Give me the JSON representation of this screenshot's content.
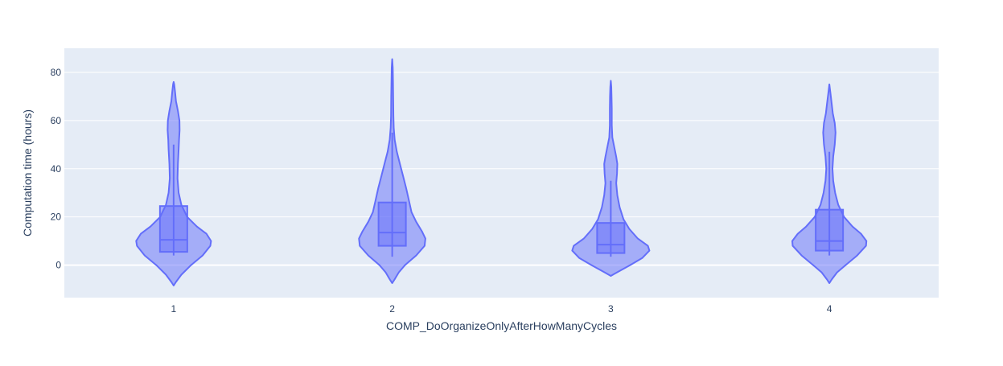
{
  "chart_data": {
    "type": "violin",
    "title": "",
    "xlabel": "COMP_DoOrganizeOnlyAfterHowManyCycles",
    "ylabel": "Computation time (hours)",
    "ylim": [
      -13.5,
      90
    ],
    "yticks": [
      0,
      20,
      40,
      60,
      80
    ],
    "grid": true,
    "categories": [
      "1",
      "2",
      "3",
      "4"
    ],
    "series": [
      {
        "category": "1",
        "box": {
          "q1": 5.5,
          "median": 10.5,
          "q3": 24.5,
          "whisker_low": 4,
          "whisker_high": 50
        },
        "range": [
          -8.5,
          76
        ],
        "density": [
          [
            -8.5,
            0
          ],
          [
            -7,
            0.06
          ],
          [
            -4,
            0.2
          ],
          [
            0,
            0.45
          ],
          [
            4,
            0.75
          ],
          [
            8,
            0.95
          ],
          [
            10,
            0.97
          ],
          [
            13,
            0.85
          ],
          [
            16,
            0.6
          ],
          [
            20,
            0.35
          ],
          [
            25,
            0.2
          ],
          [
            30,
            0.13
          ],
          [
            36,
            0.1
          ],
          [
            42,
            0.11
          ],
          [
            48,
            0.13
          ],
          [
            52,
            0.14
          ],
          [
            56,
            0.155
          ],
          [
            60,
            0.15
          ],
          [
            64,
            0.11
          ],
          [
            68,
            0.06
          ],
          [
            72,
            0.035
          ],
          [
            75,
            0.015
          ],
          [
            76,
            0
          ]
        ]
      },
      {
        "category": "2",
        "box": {
          "q1": 8,
          "median": 13.5,
          "q3": 26,
          "whisker_low": 3.5,
          "whisker_high": 55
        },
        "range": [
          -7.5,
          85.5
        ],
        "density": [
          [
            -7.5,
            0
          ],
          [
            -6,
            0.06
          ],
          [
            -3,
            0.17
          ],
          [
            0,
            0.33
          ],
          [
            4,
            0.62
          ],
          [
            8,
            0.84
          ],
          [
            11,
            0.86
          ],
          [
            14,
            0.77
          ],
          [
            18,
            0.62
          ],
          [
            22,
            0.5
          ],
          [
            27,
            0.43
          ],
          [
            32,
            0.36
          ],
          [
            37,
            0.28
          ],
          [
            42,
            0.2
          ],
          [
            47,
            0.12
          ],
          [
            52,
            0.065
          ],
          [
            57,
            0.04
          ],
          [
            62,
            0.03
          ],
          [
            70,
            0.025
          ],
          [
            76,
            0.02
          ],
          [
            82,
            0.014
          ],
          [
            85.5,
            0
          ]
        ]
      },
      {
        "category": "3",
        "box": {
          "q1": 5,
          "median": 8.5,
          "q3": 17.5,
          "whisker_low": 3.5,
          "whisker_high": 35
        },
        "range": [
          -4.5,
          76.5
        ],
        "density": [
          [
            -4.5,
            0
          ],
          [
            -3,
            0.16
          ],
          [
            0,
            0.5
          ],
          [
            3,
            0.82
          ],
          [
            6,
            1.0
          ],
          [
            8,
            0.96
          ],
          [
            11,
            0.7
          ],
          [
            15,
            0.48
          ],
          [
            19,
            0.33
          ],
          [
            24,
            0.23
          ],
          [
            29,
            0.17
          ],
          [
            34,
            0.14
          ],
          [
            38,
            0.16
          ],
          [
            42,
            0.17
          ],
          [
            45,
            0.14
          ],
          [
            49,
            0.09
          ],
          [
            53,
            0.04
          ],
          [
            58,
            0.025
          ],
          [
            65,
            0.025
          ],
          [
            70,
            0.02
          ],
          [
            74,
            0.012
          ],
          [
            76.5,
            0
          ]
        ]
      },
      {
        "category": "4",
        "box": {
          "q1": 6,
          "median": 10,
          "q3": 23,
          "whisker_low": 4,
          "whisker_high": 47
        },
        "range": [
          -7.5,
          75
        ],
        "density": [
          [
            -7.5,
            0
          ],
          [
            -6,
            0.06
          ],
          [
            -3,
            0.2
          ],
          [
            0,
            0.42
          ],
          [
            4,
            0.72
          ],
          [
            8,
            0.95
          ],
          [
            10,
            0.96
          ],
          [
            13,
            0.82
          ],
          [
            16,
            0.6
          ],
          [
            20,
            0.38
          ],
          [
            25,
            0.23
          ],
          [
            30,
            0.15
          ],
          [
            35,
            0.1
          ],
          [
            40,
            0.08
          ],
          [
            45,
            0.1
          ],
          [
            50,
            0.14
          ],
          [
            55,
            0.16
          ],
          [
            59,
            0.14
          ],
          [
            63,
            0.09
          ],
          [
            67,
            0.06
          ],
          [
            71,
            0.03
          ],
          [
            75,
            0
          ]
        ]
      }
    ],
    "colors": {
      "plot_bg": "#e5ecf6",
      "grid": "#ffffff",
      "violin_fill": "#636efa",
      "violin_line": "#636efa",
      "tick_text": "#2a3f5f",
      "axis_title": "#2a3f5f"
    }
  }
}
